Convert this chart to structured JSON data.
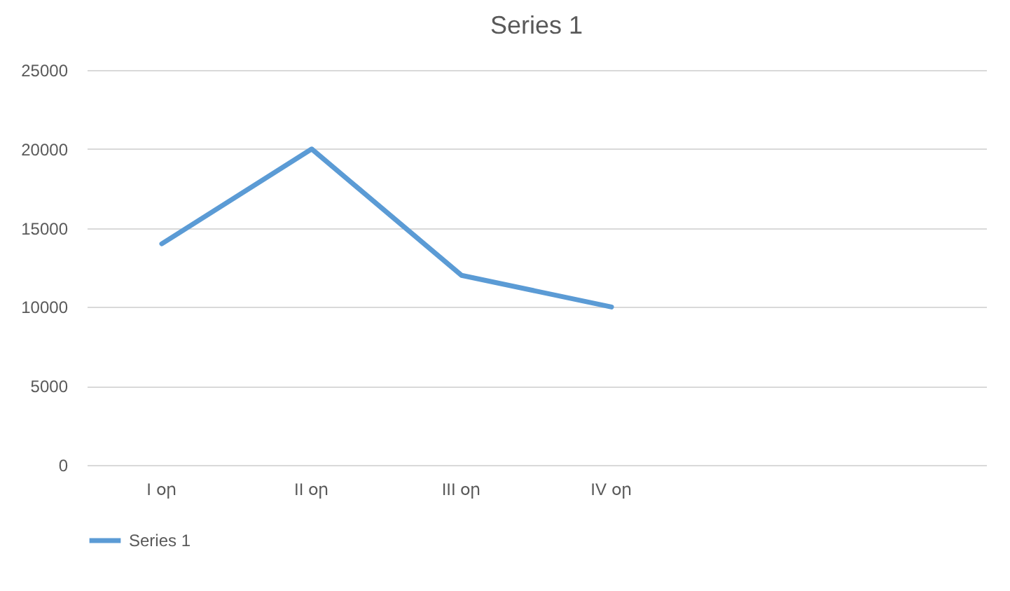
{
  "chart_data": {
    "type": "line",
    "title": "Series 1",
    "categories": [
      "I օր",
      "II օր",
      "III օր",
      "IV օր",
      null,
      null
    ],
    "series": [
      {
        "name": "Series 1",
        "color": "#5b9bd5",
        "values": [
          14000,
          20000,
          12000,
          10000,
          null,
          null
        ]
      }
    ],
    "ylim": [
      0,
      25000
    ],
    "yticks": [
      0,
      5000,
      10000,
      15000,
      20000,
      25000
    ],
    "grid": "y",
    "legend": "bottom",
    "marker": "none",
    "line_style": "solid"
  }
}
